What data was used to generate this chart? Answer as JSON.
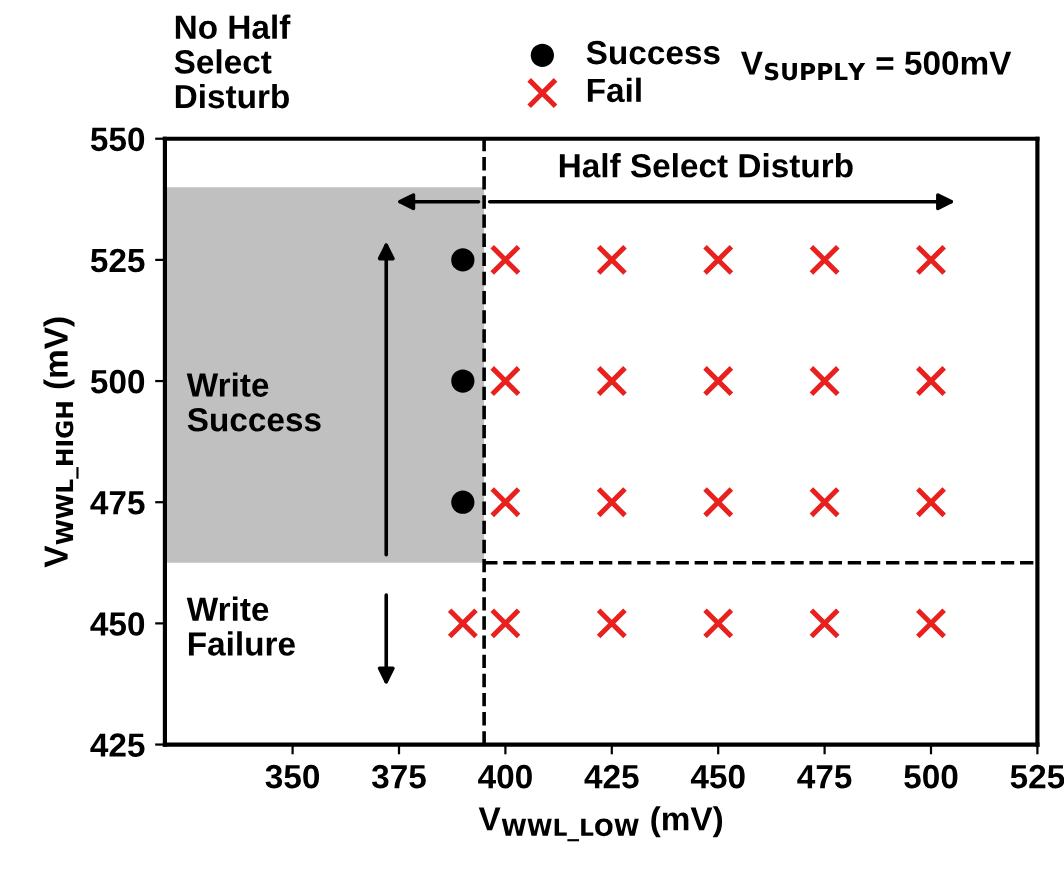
{
  "chart_data": {
    "type": "scatter",
    "xlim": [
      320,
      525
    ],
    "xticks": [
      350,
      375,
      400,
      425,
      450,
      475,
      500,
      525
    ],
    "ylim": [
      425,
      550
    ],
    "yticks": [
      425,
      450,
      475,
      500,
      525,
      550
    ],
    "xlabel": "V$_{WWL_LOW}$ (mV)",
    "ylabel": "V$_{WWL_HIGH}$ (mV)",
    "series": [
      {
        "name": "Success",
        "color": "#000000",
        "marker": "circle",
        "x": [
          390,
          390,
          390
        ],
        "values": [
          525,
          500,
          475
        ]
      },
      {
        "name": "Fail",
        "color": "#e8201e",
        "marker": "cross",
        "x": [
          400,
          425,
          450,
          475,
          500,
          400,
          425,
          450,
          475,
          500,
          400,
          425,
          450,
          475,
          500,
          390,
          400,
          425,
          450,
          475,
          500
        ],
        "values": [
          525,
          525,
          525,
          525,
          525,
          500,
          500,
          500,
          500,
          500,
          475,
          475,
          475,
          475,
          475,
          450,
          450,
          450,
          450,
          450,
          450
        ]
      }
    ],
    "bands": [
      {
        "axis": "y",
        "from": 462.5,
        "to": 540,
        "color": "#c0c0c0"
      }
    ],
    "ref_lines": [
      {
        "axis": "x",
        "value": 395,
        "line_style": "dashed",
        "color": "#000000"
      },
      {
        "axis": "y",
        "value": 462.5,
        "line_style": "dashed",
        "color": "#000000"
      }
    ],
    "annotations": [
      "No Half\nSelect\nDisturb",
      "Half Select Disturb",
      "Write\nSuccess",
      "Write\nFailure",
      "V$_{SUPPLY}$ = 500mV"
    ],
    "legend": "top",
    "grid": false
  }
}
